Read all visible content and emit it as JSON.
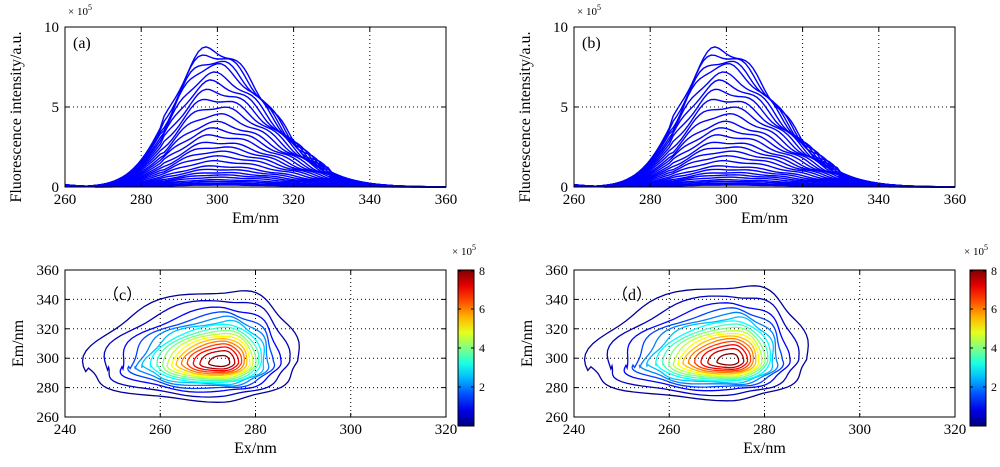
{
  "panels": {
    "a": {
      "label": "(a)"
    },
    "b": {
      "label": "(b)"
    },
    "c": {
      "label": "（c）"
    },
    "d": {
      "label": "（d）"
    }
  },
  "chart_data": [
    {
      "id": "a",
      "type": "line",
      "xlabel": "Em/nm",
      "ylabel": "Fluorescence intensity/a.u.",
      "xlim": [
        260,
        360
      ],
      "ylim": [
        0,
        1000000
      ],
      "xticks": [
        260,
        280,
        300,
        320,
        340,
        360
      ],
      "yticks": [
        0,
        500000,
        1000000
      ],
      "ytick_labels": [
        "0",
        "5",
        "10"
      ],
      "y_multiplier": "× 10^5",
      "grid": true,
      "color": "#0000ff",
      "series_peak_emission_nm": 298,
      "series_peaks": [
        860000,
        830000,
        790000,
        760000,
        700000,
        650000,
        600000,
        550000,
        500000,
        450000,
        400000,
        360000,
        320000,
        280000,
        250000,
        220000,
        190000,
        160000,
        130000,
        110000,
        90000,
        75000,
        60000,
        45000,
        35000,
        25000,
        18000,
        12000
      ]
    },
    {
      "id": "b",
      "type": "line",
      "xlabel": "Em/nm",
      "ylabel": "Fluorescence intensity/a.u.",
      "xlim": [
        260,
        360
      ],
      "ylim": [
        0,
        1000000
      ],
      "xticks": [
        260,
        280,
        300,
        320,
        340,
        360
      ],
      "yticks": [
        0,
        500000,
        1000000
      ],
      "ytick_labels": [
        "0",
        "5",
        "10"
      ],
      "y_multiplier": "× 10^5",
      "grid": true,
      "color": "#0000ff",
      "series_peak_emission_nm": 298,
      "series_peaks": [
        860000,
        830000,
        790000,
        760000,
        700000,
        650000,
        600000,
        550000,
        500000,
        450000,
        400000,
        360000,
        320000,
        280000,
        250000,
        220000,
        190000,
        160000,
        130000,
        110000,
        90000,
        75000,
        60000,
        45000,
        35000,
        25000,
        18000,
        12000
      ]
    },
    {
      "id": "c",
      "type": "heatmap",
      "subtype": "contour",
      "xlabel": "Ex/nm",
      "ylabel": "Em/nm",
      "xlim": [
        240,
        320
      ],
      "ylim": [
        260,
        360
      ],
      "xticks": [
        240,
        260,
        280,
        300,
        320
      ],
      "yticks": [
        260,
        280,
        300,
        320,
        340,
        360
      ],
      "grid": true,
      "peak": {
        "ex": 273,
        "em": 297,
        "value": 830000
      },
      "levels": [
        20000,
        50000,
        100000,
        150000,
        200000,
        250000,
        300000,
        350000,
        400000,
        450000,
        500000,
        550000,
        600000,
        650000,
        700000,
        750000,
        800000
      ],
      "colorbar": {
        "min": 0,
        "max": 800000,
        "ticks": [
          "2",
          "4",
          "6",
          "8"
        ],
        "multiplier": "× 10^5"
      }
    },
    {
      "id": "d",
      "type": "heatmap",
      "subtype": "contour",
      "xlabel": "Ex/nm",
      "ylabel": "Em/nm",
      "xlim": [
        240,
        320
      ],
      "ylim": [
        260,
        360
      ],
      "xticks": [
        240,
        260,
        280,
        300,
        320
      ],
      "yticks": [
        260,
        280,
        300,
        320,
        340,
        360
      ],
      "grid": true,
      "peak": {
        "ex": 273,
        "em": 298,
        "value": 830000
      },
      "levels": [
        20000,
        50000,
        100000,
        150000,
        200000,
        250000,
        300000,
        350000,
        400000,
        450000,
        500000,
        550000,
        600000,
        650000,
        700000,
        750000,
        800000
      ],
      "colorbar": {
        "min": 0,
        "max": 800000,
        "ticks": [
          "2",
          "4",
          "6",
          "8"
        ],
        "multiplier": "× 10^5"
      }
    }
  ]
}
